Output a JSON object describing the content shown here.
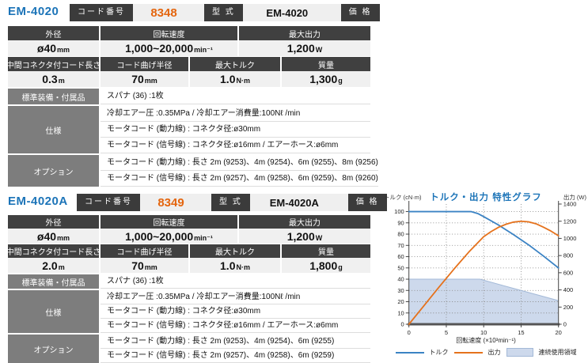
{
  "colors": {
    "accent_blue": "#1c74b8",
    "code_orange": "#e4650e",
    "torque_line": "#3b83c4",
    "output_line": "#e5721d",
    "area_fill": "#cdd9ec",
    "area_border": "#a3b9d7"
  },
  "products": [
    {
      "model": "EM-4020",
      "code_label": "コード番号",
      "code_value": "8348",
      "type_label": "型 式",
      "type_value": "EM-4020",
      "price_label": "価 格",
      "spec_row1": [
        {
          "label": "外径",
          "value": "ø40",
          "unit": "mm"
        },
        {
          "label": "回転速度",
          "value": "1,000~20,000",
          "unit": "min⁻¹"
        },
        {
          "label": "最大出力",
          "value": "1,200",
          "unit": "W"
        }
      ],
      "spec_row2": [
        {
          "label": "中間コネクタ付コード長さ",
          "value": "0.3",
          "unit": "m"
        },
        {
          "label": "コード曲げ半径",
          "value": "70",
          "unit": "mm"
        },
        {
          "label": "最大トルク",
          "value": "1.0",
          "unit": "N·m"
        },
        {
          "label": "質量",
          "value": "1,300",
          "unit": "g"
        }
      ],
      "detail_groups": [
        {
          "label": "標準装備・付属品",
          "lines": [
            "スパナ (36) :1枚"
          ]
        },
        {
          "label": "仕様",
          "lines": [
            "冷却エアー圧 :0.35MPa / 冷却エアー消費量:100Nℓ /min",
            "モータコード (動力線) : コネクタ径:ø30mm",
            "モータコード (信号線) : コネクタ径:ø16mm / エアーホース:ø6mm"
          ]
        },
        {
          "label": "オプション",
          "lines": [
            "モータコード (動力線) : 長さ 2m (9253)、4m (9254)、6m (9255)、8m (9256)",
            "モータコード (信号線) : 長さ 2m (9257)、4m (9258)、6m (9259)、8m (9260)"
          ]
        }
      ]
    },
    {
      "model": "EM-4020A",
      "code_label": "コード番号",
      "code_value": "8349",
      "type_label": "型 式",
      "type_value": "EM-4020A",
      "price_label": "価 格",
      "spec_row1": [
        {
          "label": "外径",
          "value": "ø40",
          "unit": "mm"
        },
        {
          "label": "回転速度",
          "value": "1,000~20,000",
          "unit": "min⁻¹"
        },
        {
          "label": "最大出力",
          "value": "1,200",
          "unit": "W"
        }
      ],
      "spec_row2": [
        {
          "label": "中間コネクタ付コード長さ",
          "value": "2.0",
          "unit": "m"
        },
        {
          "label": "コード曲げ半径",
          "value": "70",
          "unit": "mm"
        },
        {
          "label": "最大トルク",
          "value": "1.0",
          "unit": "N·m"
        },
        {
          "label": "質量",
          "value": "1,800",
          "unit": "g"
        }
      ],
      "detail_groups": [
        {
          "label": "標準装備・付属品",
          "lines": [
            "スパナ (36) :1枚"
          ]
        },
        {
          "label": "仕様",
          "lines": [
            "冷却エアー圧 :0.35MPa / 冷却エアー消費量:100Nℓ /min",
            "モータコード (動力線) : コネクタ径:ø30mm",
            "モータコード (信号線) : コネクタ径:ø16mm / エアーホース:ø6mm"
          ]
        },
        {
          "label": "オプション",
          "lines": [
            "モータコード (動力線) : 長さ 2m (9253)、4m (9254)、6m (9255)",
            "モータコード (信号線) : 長さ 2m (9257)、4m (9258)、6m (9259)"
          ]
        }
      ]
    }
  ],
  "chart_data": {
    "type": "line",
    "title": "トルク・出力 特性グラフ",
    "left_axis_label": "トルク (cN·m)",
    "right_axis_label": "出力 (W)",
    "xlabel": "回転速度 (×10³min⁻¹)",
    "x_range": [
      0,
      20
    ],
    "left_range": [
      0,
      100
    ],
    "right_range": [
      0,
      1400
    ],
    "x_ticks": [
      0,
      5,
      10,
      15,
      20
    ],
    "left_ticks": [
      0,
      10,
      20,
      30,
      40,
      50,
      60,
      70,
      80,
      90,
      100
    ],
    "right_ticks": [
      0,
      200,
      400,
      600,
      800,
      1000,
      1200,
      1400
    ],
    "grid": true,
    "legend_position": "bottom",
    "series": [
      {
        "name": "トルク",
        "axis": "left",
        "color": "#3b83c4",
        "x": [
          0,
          8.3,
          9.2,
          10,
          12,
          14,
          16,
          18,
          20
        ],
        "y": [
          100,
          100,
          98.3,
          95.5,
          88,
          79.5,
          70.5,
          60.5,
          50
        ]
      },
      {
        "name": "出力",
        "axis": "right",
        "color": "#e5721d",
        "x": [
          0,
          2,
          4,
          6,
          8,
          10,
          11,
          12,
          13,
          14,
          15,
          16,
          17,
          18,
          19,
          20
        ],
        "y": [
          0,
          215,
          430,
          640,
          840,
          1020,
          1080,
          1130,
          1165,
          1190,
          1200,
          1193,
          1170,
          1130,
          1085,
          1030
        ]
      },
      {
        "name": "連続使用領域",
        "axis": "left",
        "type": "area",
        "color": "#cdd9ec",
        "border": "#a3b9d7",
        "x": [
          0,
          9.5,
          15,
          20
        ],
        "y": [
          40,
          40,
          30,
          21
        ]
      }
    ]
  }
}
